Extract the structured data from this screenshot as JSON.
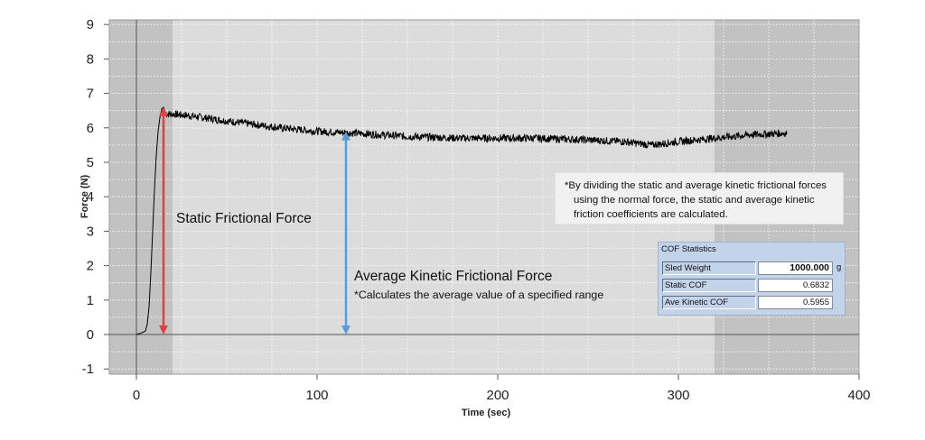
{
  "chart_data": {
    "type": "line",
    "title": "",
    "xlabel": "Time (sec)",
    "ylabel": "Force (N)",
    "xlim": [
      -15,
      400
    ],
    "ylim": [
      -1.2,
      9
    ],
    "x_ticks": [
      0,
      100,
      200,
      300,
      400
    ],
    "y_ticks": [
      -1,
      0,
      1,
      2,
      3,
      4,
      5,
      6,
      7,
      8,
      9
    ],
    "grid": true,
    "shaded_excluded_ranges": [
      [
        -15,
        20
      ],
      [
        320,
        400
      ]
    ],
    "peak_region": [
      0,
      20
    ],
    "series": [
      {
        "color": "#000000",
        "x": [
          0,
          3,
          5,
          6,
          7,
          8,
          9,
          10,
          11,
          12,
          13,
          14,
          15,
          16,
          17,
          20,
          30,
          50,
          80,
          100,
          120,
          150,
          180,
          200,
          220,
          250,
          270,
          285,
          300,
          320,
          340,
          360
        ],
        "y": [
          0.0,
          0.05,
          0.1,
          0.3,
          0.8,
          1.8,
          3.0,
          4.2,
          5.2,
          5.9,
          6.3,
          6.55,
          6.6,
          6.45,
          6.4,
          6.4,
          6.35,
          6.2,
          6.0,
          5.9,
          5.85,
          5.75,
          5.7,
          5.7,
          5.7,
          5.65,
          5.6,
          5.5,
          5.6,
          5.7,
          5.8,
          5.85
        ]
      }
    ],
    "annotations": [
      {
        "text": "Static Frictional Force",
        "x": 15,
        "y_from": 0,
        "y_to": 6.6,
        "color": "#e0413e"
      },
      {
        "text": "Average Kinetic Frictional Force",
        "subtext": "*Calculates the average value of a specified range",
        "x": 116,
        "y_from": 0,
        "y_to": 5.9,
        "color": "#5a9bd5"
      }
    ]
  },
  "note": {
    "line1": "*By dividing the static and average kinetic frictional forces",
    "line2": "using the normal force, the static and average kinetic",
    "line3": "friction coefficients are calculated."
  },
  "cof_panel": {
    "title": "COF Statistics",
    "rows": [
      {
        "label": "Sled Weight",
        "value": "1000.000",
        "unit": "g"
      },
      {
        "label": "Static COF",
        "value": "0.6832"
      },
      {
        "label": "Ave Kinetic COF",
        "value": "0.5955"
      }
    ]
  },
  "colors": {
    "plot_bg": "#dcdcdc",
    "shade": "#c2c2c2",
    "static_arrow": "#e0413e",
    "kinetic_arrow": "#5a9bd5",
    "panel_bg": "#c3d3ea"
  }
}
